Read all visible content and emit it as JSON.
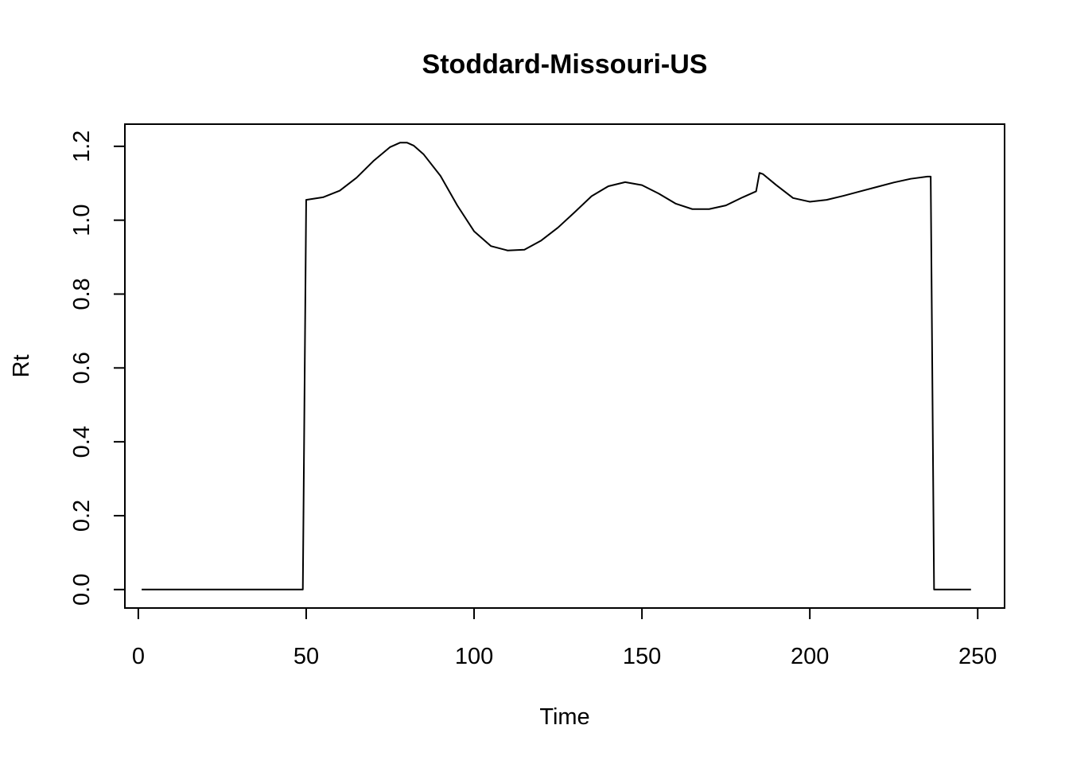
{
  "chart_data": {
    "type": "line",
    "title": "Stoddard-Missouri-US",
    "xlabel": "Time",
    "ylabel": "Rt",
    "xlim": [
      -4,
      258
    ],
    "ylim": [
      -0.05,
      1.26
    ],
    "x_ticks": [
      0,
      50,
      100,
      150,
      200,
      250
    ],
    "y_ticks": [
      0.0,
      0.2,
      0.4,
      0.6,
      0.8,
      1.0,
      1.2
    ],
    "x_tick_labels": [
      "0",
      "50",
      "100",
      "150",
      "200",
      "250"
    ],
    "y_tick_labels": [
      "0.0",
      "0.2",
      "0.4",
      "0.6",
      "0.8",
      "1.0",
      "1.2"
    ],
    "grid": false,
    "legend": "none",
    "series": [
      {
        "color": "#000000",
        "x": [
          1,
          10,
          20,
          30,
          40,
          49,
          50,
          55,
          60,
          65,
          70,
          75,
          78,
          80,
          82,
          85,
          90,
          95,
          100,
          105,
          110,
          115,
          120,
          125,
          130,
          135,
          140,
          145,
          150,
          155,
          160,
          165,
          170,
          175,
          180,
          184,
          185,
          186,
          190,
          195,
          200,
          205,
          210,
          215,
          220,
          225,
          230,
          235,
          236,
          237,
          240,
          245,
          248
        ],
        "y": [
          0,
          0,
          0,
          0,
          0,
          0,
          1.055,
          1.062,
          1.08,
          1.115,
          1.16,
          1.198,
          1.21,
          1.21,
          1.202,
          1.178,
          1.12,
          1.04,
          0.97,
          0.93,
          0.918,
          0.92,
          0.945,
          0.98,
          1.022,
          1.065,
          1.092,
          1.103,
          1.095,
          1.072,
          1.045,
          1.03,
          1.03,
          1.04,
          1.062,
          1.078,
          1.128,
          1.125,
          1.095,
          1.06,
          1.05,
          1.055,
          1.066,
          1.078,
          1.09,
          1.102,
          1.112,
          1.118,
          1.118,
          0,
          0,
          0,
          0
        ]
      }
    ]
  }
}
